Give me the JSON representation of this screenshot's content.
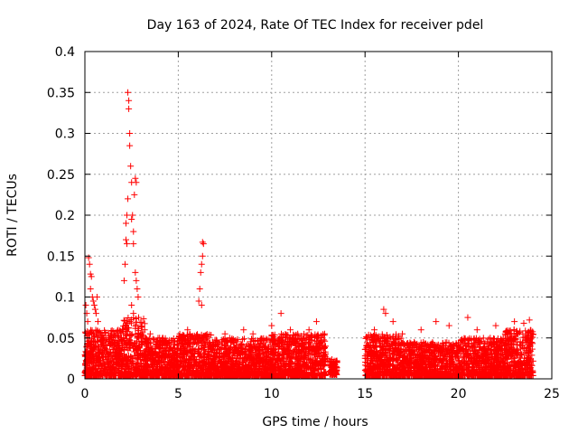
{
  "chart_data": {
    "type": "scatter",
    "title": "Day 163 of 2024, Rate Of TEC Index for receiver pdel",
    "xlabel": "GPS time / hours",
    "ylabel": "ROTI / TECUs",
    "xlim": [
      0,
      25
    ],
    "ylim": [
      0,
      0.4
    ],
    "xticks": [
      0,
      5,
      10,
      15,
      20,
      25
    ],
    "xtick_labels": [
      "0",
      "5",
      "10",
      "15",
      "20",
      "25"
    ],
    "yticks": [
      0,
      0.05,
      0.1,
      0.15,
      0.2,
      0.25,
      0.3,
      0.35,
      0.4
    ],
    "ytick_labels": [
      "0",
      "0.05",
      "0.1",
      "0.15",
      "0.2",
      "0.25",
      "0.3",
      "0.35",
      "0.4"
    ],
    "grid": true,
    "legend": "none",
    "marker": "+",
    "marker_color": "#ff0000",
    "series": [
      {
        "name": "ROTI",
        "points": [
          [
            0.05,
            0.09
          ],
          [
            0.1,
            0.08
          ],
          [
            0.15,
            0.07
          ],
          [
            0.2,
            0.148
          ],
          [
            0.25,
            0.14
          ],
          [
            0.3,
            0.128
          ],
          [
            0.35,
            0.125
          ],
          [
            0.3,
            0.11
          ],
          [
            0.4,
            0.1
          ],
          [
            0.45,
            0.095
          ],
          [
            0.5,
            0.09
          ],
          [
            0.55,
            0.085
          ],
          [
            0.6,
            0.08
          ],
          [
            0.7,
            0.07
          ],
          [
            0.65,
            0.1
          ],
          [
            2.1,
            0.12
          ],
          [
            2.15,
            0.14
          ],
          [
            2.2,
            0.19
          ],
          [
            2.25,
            0.2
          ],
          [
            2.3,
            0.22
          ],
          [
            2.35,
            0.33
          ],
          [
            2.3,
            0.35
          ],
          [
            2.35,
            0.34
          ],
          [
            2.4,
            0.3
          ],
          [
            2.4,
            0.285
          ],
          [
            2.45,
            0.26
          ],
          [
            2.5,
            0.24
          ],
          [
            2.55,
            0.2
          ],
          [
            2.6,
            0.18
          ],
          [
            2.65,
            0.225
          ],
          [
            2.7,
            0.245
          ],
          [
            2.75,
            0.24
          ],
          [
            2.2,
            0.17
          ],
          [
            2.25,
            0.165
          ],
          [
            2.5,
            0.195
          ],
          [
            2.6,
            0.165
          ],
          [
            2.7,
            0.13
          ],
          [
            2.75,
            0.12
          ],
          [
            2.8,
            0.11
          ],
          [
            2.85,
            0.1
          ],
          [
            2.5,
            0.09
          ],
          [
            2.6,
            0.08
          ],
          [
            6.1,
            0.095
          ],
          [
            6.15,
            0.11
          ],
          [
            6.2,
            0.13
          ],
          [
            6.25,
            0.14
          ],
          [
            6.3,
            0.15
          ],
          [
            6.35,
            0.165
          ],
          [
            6.3,
            0.167
          ],
          [
            6.25,
            0.09
          ],
          [
            3.2,
            0.06
          ],
          [
            3.5,
            0.055
          ],
          [
            4.0,
            0.05
          ],
          [
            4.5,
            0.045
          ],
          [
            5.5,
            0.06
          ],
          [
            7.5,
            0.055
          ],
          [
            8.5,
            0.06
          ],
          [
            9.0,
            0.055
          ],
          [
            10.0,
            0.065
          ],
          [
            10.5,
            0.08
          ],
          [
            11.0,
            0.06
          ],
          [
            12.0,
            0.06
          ],
          [
            12.4,
            0.07
          ],
          [
            15.5,
            0.06
          ],
          [
            16.0,
            0.085
          ],
          [
            16.1,
            0.08
          ],
          [
            16.5,
            0.07
          ],
          [
            17.0,
            0.055
          ],
          [
            18.0,
            0.06
          ],
          [
            18.8,
            0.07
          ],
          [
            19.5,
            0.065
          ],
          [
            20.5,
            0.075
          ],
          [
            21.0,
            0.06
          ],
          [
            22.0,
            0.065
          ],
          [
            22.5,
            0.055
          ],
          [
            23.0,
            0.07
          ],
          [
            23.5,
            0.068
          ],
          [
            23.8,
            0.072
          ],
          [
            13.0,
            0.025
          ],
          [
            13.2,
            0.015
          ],
          [
            13.3,
            0.02
          ],
          [
            13.4,
            0.01
          ]
        ],
        "dense_bands": [
          {
            "x_range": [
              0.0,
              2.0
            ],
            "y_range": [
              0.0,
              0.06
            ]
          },
          {
            "x_range": [
              2.0,
              3.2
            ],
            "y_range": [
              0.0,
              0.075
            ]
          },
          {
            "x_range": [
              3.2,
              5.0
            ],
            "y_range": [
              0.0,
              0.05
            ]
          },
          {
            "x_range": [
              5.0,
              6.8
            ],
            "y_range": [
              0.0,
              0.055
            ]
          },
          {
            "x_range": [
              6.8,
              10.0
            ],
            "y_range": [
              0.0,
              0.05
            ]
          },
          {
            "x_range": [
              10.0,
              12.9
            ],
            "y_range": [
              0.0,
              0.055
            ]
          },
          {
            "x_range": [
              13.1,
              13.5
            ],
            "y_range": [
              0.005,
              0.025
            ]
          },
          {
            "x_range": [
              15.0,
              17.0
            ],
            "y_range": [
              0.0,
              0.055
            ]
          },
          {
            "x_range": [
              17.0,
              20.0
            ],
            "y_range": [
              0.0,
              0.045
            ]
          },
          {
            "x_range": [
              20.0,
              22.5
            ],
            "y_range": [
              0.0,
              0.05
            ]
          },
          {
            "x_range": [
              22.5,
              24.0
            ],
            "y_range": [
              0.0,
              0.06
            ]
          }
        ]
      }
    ]
  }
}
